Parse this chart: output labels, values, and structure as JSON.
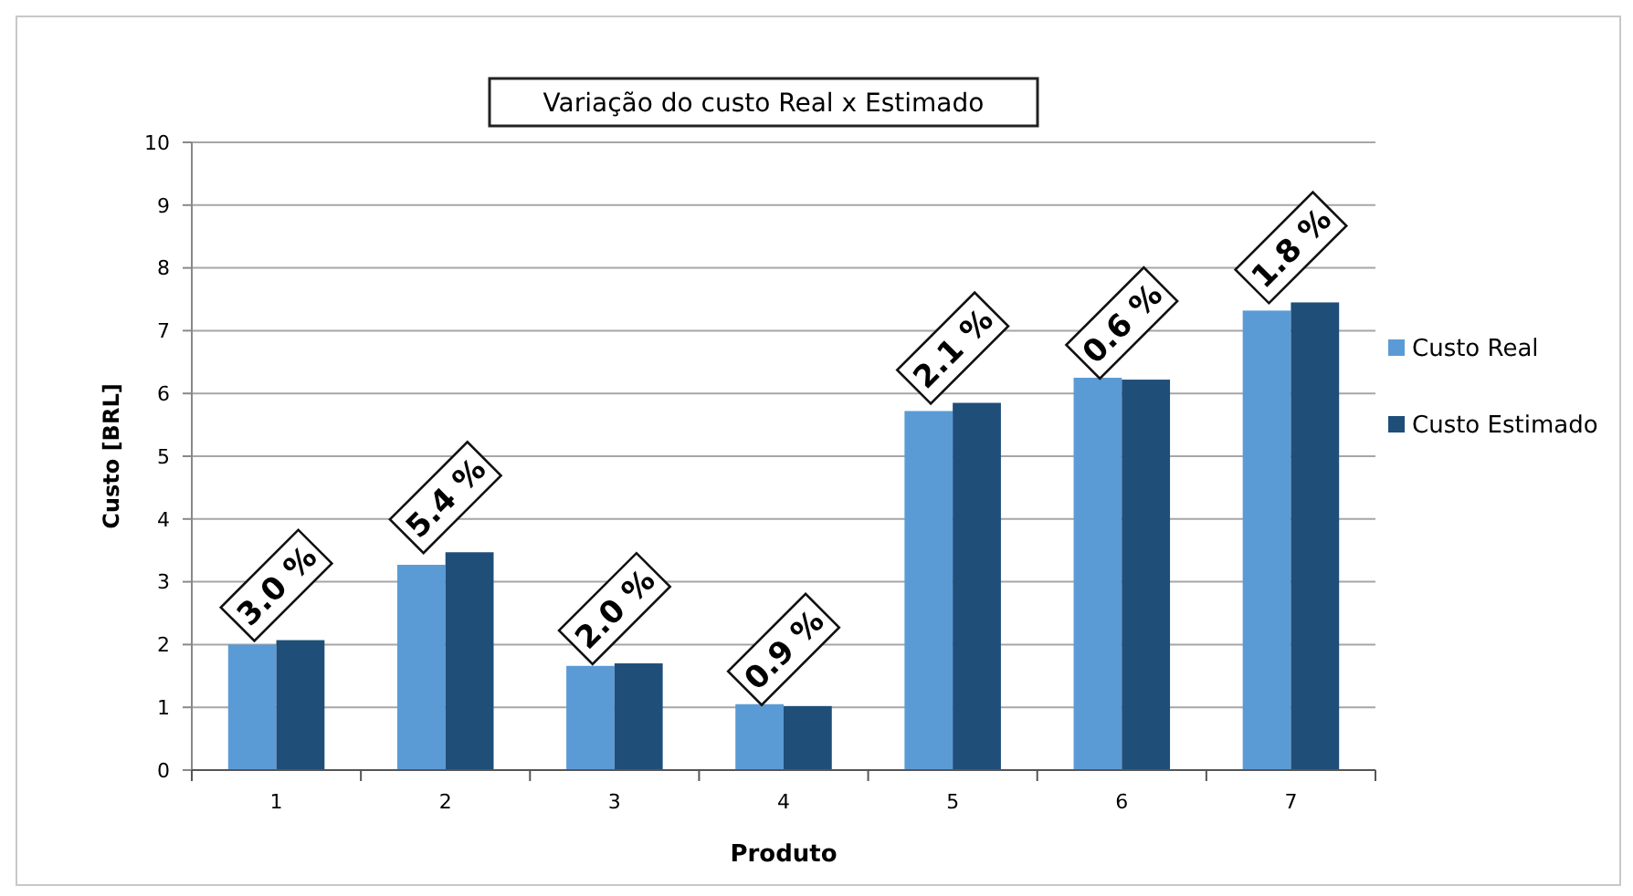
{
  "chart_data": {
    "type": "bar",
    "title": "Variação do custo Real x Estimado",
    "xlabel": "Produto",
    "ylabel": "Custo [BRL]",
    "categories": [
      "1",
      "2",
      "3",
      "4",
      "5",
      "6",
      "7"
    ],
    "series": [
      {
        "name": "Custo Real",
        "color": "#5b9bd5",
        "values": [
          2.0,
          3.27,
          1.66,
          1.05,
          5.72,
          6.25,
          7.32
        ]
      },
      {
        "name": "Custo Estimado",
        "color": "#1f4e79",
        "values": [
          2.07,
          3.47,
          1.7,
          1.02,
          5.85,
          6.22,
          7.45
        ]
      }
    ],
    "ylim": [
      0,
      10
    ],
    "yticks": [
      0,
      1,
      2,
      3,
      4,
      5,
      6,
      7,
      8,
      9,
      10
    ],
    "grid": "y",
    "legend": "right",
    "annotations": [
      {
        "text": "3.0 %",
        "x": "1",
        "y": 2.07
      },
      {
        "text": "5.4 %",
        "x": "2",
        "y": 3.47
      },
      {
        "text": "2.0 %",
        "x": "3",
        "y": 1.7
      },
      {
        "text": "0.9 %",
        "x": "4",
        "y": 1.05
      },
      {
        "text": "2.1 %",
        "x": "5",
        "y": 5.85
      },
      {
        "text": "0.6 %",
        "x": "6",
        "y": 6.25
      },
      {
        "text": "1.8 %",
        "x": "7",
        "y": 7.45
      }
    ]
  }
}
